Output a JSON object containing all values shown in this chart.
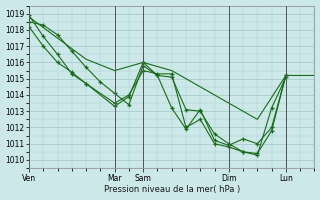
{
  "background_color": "#cce8e8",
  "grid_color": "#aacccc",
  "line_color": "#1a6b1a",
  "marker_color": "#1a6b1a",
  "xlabel": "Pression niveau de la mer( hPa )",
  "ylim": [
    1009.5,
    1019.5
  ],
  "yticks": [
    1010,
    1011,
    1012,
    1013,
    1014,
    1015,
    1016,
    1017,
    1018,
    1019
  ],
  "xlim": [
    0,
    240
  ],
  "xtick_positions": [
    0,
    72,
    96,
    168,
    216
  ],
  "xtick_labels": [
    "Ven",
    "Mar",
    "Sam",
    "Dim",
    "Lun"
  ],
  "vlines": [
    0,
    72,
    96,
    168,
    216
  ],
  "series": [
    {
      "x": [
        0,
        24,
        48,
        72,
        96,
        120,
        144,
        168,
        192,
        216,
        240
      ],
      "y": [
        1018.8,
        1017.5,
        1016.2,
        1015.5,
        1016.0,
        1015.5,
        1014.5,
        1013.5,
        1012.5,
        1015.2,
        1015.2
      ],
      "has_markers": false
    },
    {
      "x": [
        0,
        12,
        24,
        36,
        48,
        72,
        84,
        96,
        108,
        120,
        132,
        144,
        156,
        168,
        180,
        192,
        204,
        216
      ],
      "y": [
        1018.9,
        1017.6,
        1016.5,
        1015.3,
        1014.7,
        1013.3,
        1013.9,
        1016.0,
        1015.2,
        1015.1,
        1013.1,
        1013.0,
        1011.6,
        1011.0,
        1010.5,
        1010.3,
        1013.2,
        1015.1
      ],
      "has_markers": true
    },
    {
      "x": [
        0,
        12,
        24,
        36,
        48,
        72,
        84,
        96,
        108,
        120,
        132,
        144,
        156,
        168,
        180,
        192,
        204,
        216
      ],
      "y": [
        1018.2,
        1017.0,
        1016.0,
        1015.4,
        1014.7,
        1013.5,
        1014.0,
        1015.5,
        1015.3,
        1015.3,
        1012.0,
        1012.5,
        1011.0,
        1010.8,
        1010.5,
        1010.4,
        1011.8,
        1015.2
      ],
      "has_markers": true
    },
    {
      "x": [
        0,
        12,
        24,
        36,
        48,
        60,
        72,
        84,
        96,
        108,
        120,
        132,
        144,
        156,
        168,
        180,
        192,
        204,
        216
      ],
      "y": [
        1018.5,
        1018.3,
        1017.7,
        1016.7,
        1015.7,
        1014.8,
        1014.1,
        1013.4,
        1015.8,
        1015.2,
        1013.2,
        1011.9,
        1013.1,
        1011.2,
        1010.9,
        1011.3,
        1011.0,
        1012.0,
        1015.2
      ],
      "has_markers": true
    }
  ]
}
